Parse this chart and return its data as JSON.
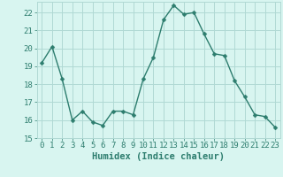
{
  "x": [
    0,
    1,
    2,
    3,
    4,
    5,
    6,
    7,
    8,
    9,
    10,
    11,
    12,
    13,
    14,
    15,
    16,
    17,
    18,
    19,
    20,
    21,
    22,
    23
  ],
  "y": [
    19.2,
    20.1,
    18.3,
    16.0,
    16.5,
    15.9,
    15.7,
    16.5,
    16.5,
    16.3,
    18.3,
    19.5,
    21.6,
    22.4,
    21.9,
    22.0,
    20.8,
    19.7,
    19.6,
    18.2,
    17.3,
    16.3,
    16.2,
    15.6
  ],
  "line_color": "#2d7d6e",
  "marker": "D",
  "marker_size": 2.5,
  "bg_color": "#d8f5f0",
  "grid_color": "#b0d9d4",
  "xlabel": "Humidex (Indice chaleur)",
  "ylabel": "",
  "ylim": [
    15,
    22.6
  ],
  "xlim": [
    -0.5,
    23.5
  ],
  "yticks": [
    15,
    16,
    17,
    18,
    19,
    20,
    21,
    22
  ],
  "xticks": [
    0,
    1,
    2,
    3,
    4,
    5,
    6,
    7,
    8,
    9,
    10,
    11,
    12,
    13,
    14,
    15,
    16,
    17,
    18,
    19,
    20,
    21,
    22,
    23
  ],
  "tick_label_fontsize": 6.5,
  "xlabel_fontsize": 7.5,
  "line_width": 1.0,
  "label_color": "#2d7d6e"
}
